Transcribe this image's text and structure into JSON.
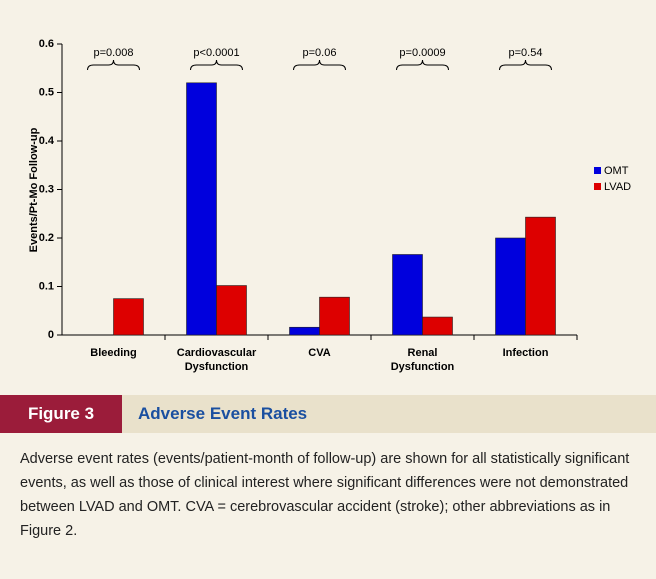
{
  "chart_data": {
    "type": "bar",
    "y_label": "Events/Pt-Mo Follow-up",
    "categories": [
      [
        "Bleeding"
      ],
      [
        "Cardiovascular",
        "Dysfunction"
      ],
      [
        "CVA"
      ],
      [
        "Renal",
        "Dysfunction"
      ],
      [
        "Infection"
      ]
    ],
    "series": [
      {
        "name": "OMT",
        "color": "#0000dd",
        "values": [
          0,
          0.52,
          0.016,
          0.166,
          0.2
        ]
      },
      {
        "name": "LVAD",
        "color": "#dd0000",
        "values": [
          0.075,
          0.102,
          0.078,
          0.037,
          0.243
        ]
      }
    ],
    "annotations": [
      "p=0.008",
      "p<0.0001",
      "p=0.06",
      "p=0.0009",
      "p=0.54"
    ],
    "ylim": [
      0,
      0.6
    ],
    "yticks": [
      0,
      0.1,
      0.2,
      0.3,
      0.4,
      0.5,
      0.6
    ],
    "legend": "right"
  },
  "figure": {
    "label": "Figure 3",
    "title": "Adverse Event Rates",
    "caption": "Adverse event rates (events/patient-month of follow-up) are shown for all statistically significant events, as well as those of clinical interest where significant differences were not demonstrated between LVAD and OMT. CVA = cerebrovascular accident (stroke); other abbreviations as in Figure 2."
  }
}
